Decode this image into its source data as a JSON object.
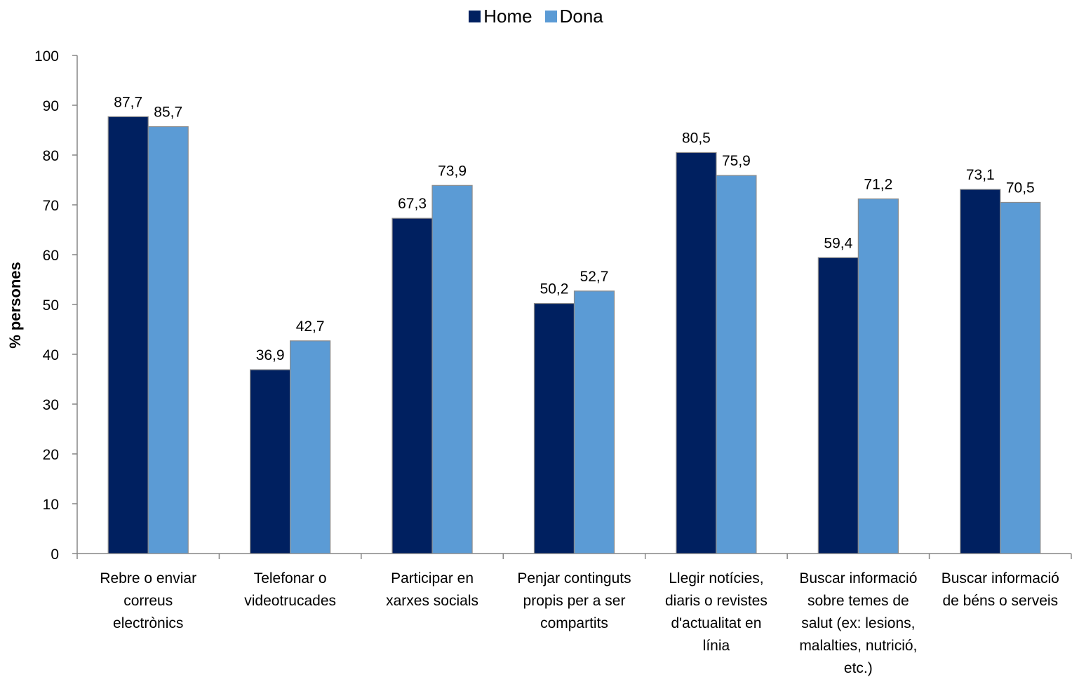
{
  "chart_data": {
    "type": "bar",
    "title": "",
    "xlabel": "",
    "ylabel": "% persones",
    "ylim": [
      0,
      100
    ],
    "yticks": [
      "0",
      "10",
      "20",
      "30",
      "40",
      "50",
      "60",
      "70",
      "80",
      "90",
      "100"
    ],
    "grid": false,
    "legend_position": "top-center",
    "categories": [
      [
        "Rebre o enviar",
        "correus",
        "electrònics"
      ],
      [
        "Telefonar o",
        "videotrucades"
      ],
      [
        "Participar en",
        "xarxes socials"
      ],
      [
        "Penjar continguts",
        "propis per a ser",
        "compartits"
      ],
      [
        "Llegir notícies,",
        "diaris o revistes",
        "d'actualitat en",
        "línia"
      ],
      [
        "Buscar informació",
        "sobre temes de",
        "salut (ex: lesions,",
        "malalties, nutrició,",
        "etc.)"
      ],
      [
        "Buscar informació",
        "de béns o serveis"
      ]
    ],
    "series": [
      {
        "name": "Home",
        "color": "#002060",
        "values": [
          87.7,
          36.9,
          67.3,
          50.2,
          80.5,
          59.4,
          73.1
        ],
        "labels": [
          "87,7",
          "36,9",
          "67,3",
          "50,2",
          "80,5",
          "59,4",
          "73,1"
        ]
      },
      {
        "name": "Dona",
        "color": "#5B9BD5",
        "values": [
          85.7,
          42.7,
          73.9,
          52.7,
          75.9,
          71.2,
          70.5
        ],
        "labels": [
          "85,7",
          "42,7",
          "73,9",
          "52,7",
          "75,9",
          "71,2",
          "70,5"
        ]
      }
    ]
  }
}
